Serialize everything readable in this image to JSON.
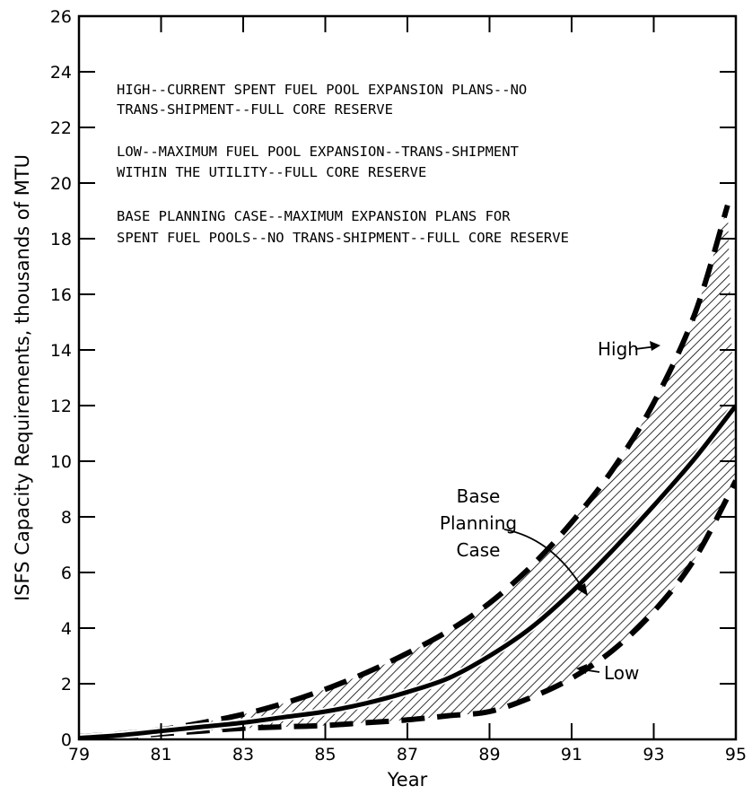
{
  "chart_data": {
    "type": "area",
    "title": "",
    "xlabel": "Year",
    "ylabel": "ISFS Capacity Requirements, thousands of MTU",
    "xlim": [
      79,
      95
    ],
    "ylim": [
      0,
      26
    ],
    "x_ticks": [
      "79",
      "81",
      "83",
      "85",
      "87",
      "89",
      "91",
      "93",
      "95"
    ],
    "y_ticks": [
      "0",
      "2",
      "4",
      "6",
      "8",
      "10",
      "12",
      "14",
      "16",
      "18",
      "20",
      "22",
      "24",
      "26"
    ],
    "grid": false,
    "notes": [
      "HIGH--CURRENT SPENT FUEL POOL EXPANSION PLANS--NO",
      "TRANS-SHIPMENT--FULL CORE RESERVE",
      "LOW--MAXIMUM FUEL POOL EXPANSION--TRANS-SHIPMENT",
      "WITHIN THE UTILITY--FULL CORE RESERVE",
      "BASE PLANNING CASE--MAXIMUM EXPANSION PLANS FOR",
      "SPENT FUEL POOLS--NO TRANS-SHIPMENT--FULL CORE RESERVE"
    ],
    "series": [
      {
        "name": "High",
        "style": "dashed",
        "x": [
          79,
          80,
          81,
          82,
          83,
          84,
          85,
          86,
          87,
          88,
          89,
          90,
          91,
          92,
          93,
          94,
          94.8
        ],
        "values": [
          0.1,
          0.2,
          0.35,
          0.6,
          0.9,
          1.3,
          1.8,
          2.4,
          3.1,
          3.9,
          4.9,
          6.2,
          7.8,
          9.7,
          12.1,
          15.3,
          19.2
        ]
      },
      {
        "name": "Base Planning Case",
        "style": "solid",
        "x": [
          79,
          80,
          81,
          82,
          83,
          84,
          85,
          86,
          87,
          88,
          89,
          90,
          91,
          92,
          93,
          94,
          95
        ],
        "values": [
          0.05,
          0.15,
          0.3,
          0.45,
          0.6,
          0.8,
          1.0,
          1.3,
          1.7,
          2.2,
          3.0,
          4.0,
          5.3,
          6.8,
          8.4,
          10.1,
          12.0
        ]
      },
      {
        "name": "Low",
        "style": "dashed",
        "x": [
          79,
          80,
          81,
          82,
          83,
          84,
          85,
          86,
          87,
          88,
          89,
          90,
          91,
          92,
          93,
          94,
          95
        ],
        "values": [
          0.0,
          0.1,
          0.2,
          0.3,
          0.4,
          0.45,
          0.5,
          0.6,
          0.7,
          0.85,
          1.0,
          1.5,
          2.2,
          3.2,
          4.6,
          6.5,
          9.3
        ]
      }
    ],
    "annotations": {
      "high_label": "High",
      "base_label_lines": [
        "Base",
        "Planning",
        "Case"
      ],
      "low_label": "Low"
    }
  }
}
